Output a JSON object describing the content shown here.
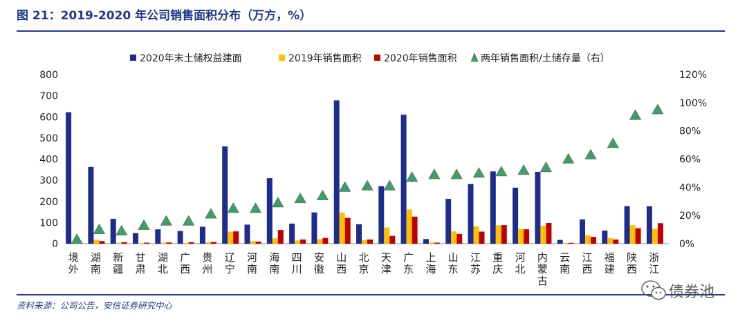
{
  "figure_title": "图 21：2019-2020 年公司销售面积分布（万方，%）",
  "source_note": "资料来源：公司公告，安信证券研究中心",
  "watermark_text": "债券池",
  "colors": {
    "land_bank": "#1f2c8f",
    "sales_2019": "#ffc000",
    "sales_2020": "#c00000",
    "ratio_marker": "#3aa066",
    "ratio_marker_stroke": "#6b6b6b",
    "title": "#1f3a8a"
  },
  "chart_data": {
    "type": "bar",
    "categories": [
      "境外",
      "湖南",
      "新疆",
      "甘肃",
      "湖北",
      "广西",
      "贵州",
      "辽宁",
      "河南",
      "海南",
      "四川",
      "安徽",
      "山西",
      "北京",
      "天津",
      "广东",
      "上海",
      "山东",
      "江苏",
      "重庆",
      "河北",
      "内蒙古",
      "云南",
      "江西",
      "福建",
      "陕西",
      "浙江"
    ],
    "series": [
      {
        "name": "2020年末土储权益建面",
        "axis": "left",
        "values": [
          622,
          363,
          118,
          50,
          68,
          60,
          80,
          460,
          90,
          310,
          95,
          148,
          678,
          92,
          272,
          610,
          22,
          212,
          282,
          342,
          265,
          340,
          18,
          115,
          62,
          178,
          177
        ]
      },
      {
        "name": "2019年销售面积",
        "axis": "left",
        "values": [
          8,
          18,
          4,
          3,
          5,
          4,
          7,
          57,
          12,
          25,
          15,
          22,
          147,
          18,
          77,
          162,
          6,
          58,
          82,
          87,
          70,
          85,
          3,
          40,
          26,
          88,
          70
        ]
      },
      {
        "name": "2020年销售面积",
        "axis": "left",
        "values": [
          6,
          12,
          7,
          5,
          6,
          7,
          8,
          58,
          10,
          65,
          20,
          27,
          122,
          20,
          37,
          128,
          5,
          46,
          57,
          88,
          68,
          98,
          4,
          32,
          20,
          73,
          97
        ]
      },
      {
        "name": "两年销售面积/土储存量（右）",
        "axis": "right",
        "type": "scatter",
        "values": [
          3,
          10,
          9,
          13,
          16,
          16,
          21,
          25,
          25,
          29,
          32,
          34,
          40,
          41,
          41,
          47,
          49,
          49,
          50,
          51,
          52,
          54,
          60,
          63,
          71,
          91,
          95
        ]
      }
    ],
    "left_axis": {
      "ylim": [
        0,
        800
      ],
      "ticks": [
        "0",
        "100",
        "200",
        "300",
        "400",
        "500",
        "600",
        "700",
        "800"
      ]
    },
    "right_axis": {
      "ylim": [
        0,
        120
      ],
      "ticks": [
        "0%",
        "20%",
        "40%",
        "60%",
        "80%",
        "100%",
        "120%"
      ]
    },
    "legend": {
      "position": "top",
      "labels": [
        "2020年末土储权益建面",
        "2019年销售面积",
        "2020年销售面积",
        "两年销售面积/土储存量（右）"
      ]
    },
    "grid": false
  }
}
